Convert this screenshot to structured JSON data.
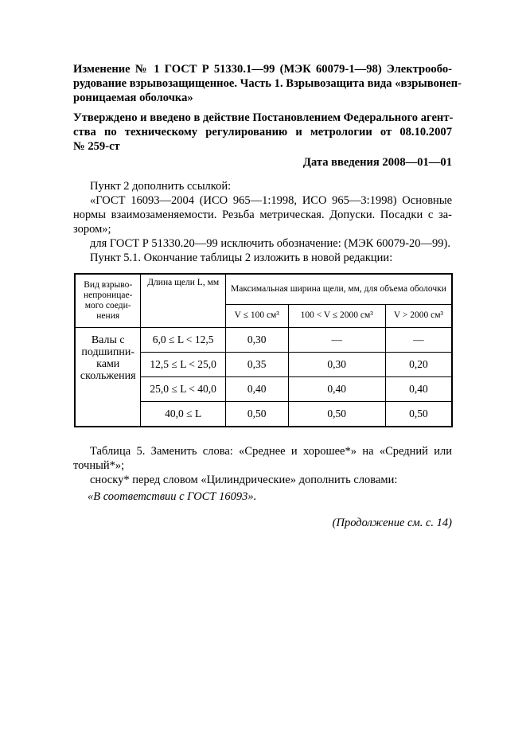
{
  "header": {
    "title_lines": [
      "Изменение № 1 ГОСТ  Р 51330.1—99 (МЭК 60079-1—98) Электрообо-",
      "рудование взрывозащищенное. Часть 1. Взрывозащита вида «взрывонеп-",
      "роницаемая оболочка»"
    ],
    "approval_lines": [
      "Утверждено и введено в действие Постановлением Федерального агент-",
      "ства  по  техническому  регулированию  и  метрологии  от  08.10.2007",
      "№ 259-ст"
    ],
    "date": "Дата введения 2008—01—01"
  },
  "body": {
    "p1": "Пункт 2 дополнить ссылкой:",
    "p2_lines": [
      "«ГОСТ 16093—2004 (ИСО 965—1:1998, ИСО 965—3:1998) Основные",
      "нормы взаимозаменяемости. Резьба метрическая. Допуски. Посадки с за-",
      "зором»;"
    ],
    "p3": "для ГОСТ Р 51330.20—99 исключить обозначение: (МЭК 60079-20—99).",
    "p4": "Пункт 5.1. Окончание таблицы 2 изложить в новой редакции:",
    "p5_lines": [
      "Таблица 5. Заменить слова: «Среднее и хорошее*» на «Средний или",
      "точный*»;"
    ],
    "p6": "сноску* перед словом «Цилиндрические» дополнить словами:",
    "p7": "«В соответствии с ГОСТ 16093».",
    "continuation": "(Продолжение см. с. 14)"
  },
  "table": {
    "h_type": "Вид взрыво-непроницае-мого соеди-нения",
    "h_length": "Длина щели L, мм",
    "h_width": "Максимальная ширина щели, мм, для объема оболочки",
    "h_v1": "V ≤ 100 см³",
    "h_v2": "100 < V ≤ 2000 см³",
    "h_v3": "V > 2000 см³",
    "type": "Валы с подшипни-ками скольжения",
    "rows": [
      {
        "len": "6,0 ≤ L < 12,5",
        "v1": "0,30",
        "v2": "—",
        "v3": "—"
      },
      {
        "len": "12,5 ≤ L < 25,0",
        "v1": "0,35",
        "v2": "0,30",
        "v3": "0,20"
      },
      {
        "len": "25,0 ≤ L < 40,0",
        "v1": "0,40",
        "v2": "0,40",
        "v3": "0,40"
      },
      {
        "len": "40,0 ≤ L",
        "v1": "0,50",
        "v2": "0,50",
        "v3": "0,50"
      }
    ]
  }
}
